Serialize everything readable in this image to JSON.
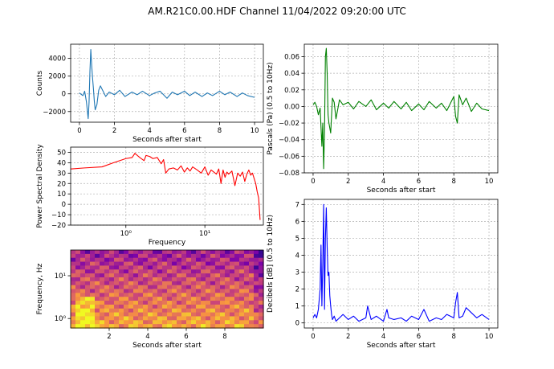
{
  "figure": {
    "title": "AM.R21C0.00.HDF Channel 11/04/2022 09:20:00 UTC"
  },
  "colors": {
    "counts": "#1f77b4",
    "psd": "#ff0000",
    "pascals": "#008000",
    "decibels": "#0000ff",
    "grid": "#b0b0b0"
  },
  "chart_data": [
    {
      "id": "counts",
      "type": "line",
      "title": "",
      "xlabel": "Seconds after start",
      "ylabel": "Counts",
      "xlim": [
        -0.5,
        10.5
      ],
      "ylim": [
        -3200,
        5600
      ],
      "xticks": [
        0,
        2,
        4,
        6,
        8,
        10
      ],
      "yticks": [
        -2000,
        0,
        2000,
        4000
      ],
      "grid": true,
      "x": [
        0.0,
        0.2,
        0.3,
        0.4,
        0.5,
        0.55,
        0.6,
        0.65,
        0.7,
        0.75,
        0.8,
        0.85,
        0.9,
        1.0,
        1.1,
        1.2,
        1.3,
        1.5,
        1.7,
        2.0,
        2.3,
        2.6,
        3.0,
        3.3,
        3.6,
        4.0,
        4.3,
        4.6,
        5.0,
        5.3,
        5.6,
        6.0,
        6.3,
        6.6,
        7.0,
        7.3,
        7.6,
        8.0,
        8.3,
        8.6,
        9.0,
        9.3,
        9.6,
        10.0
      ],
      "values": [
        100,
        -200,
        300,
        -900,
        -2800,
        -1000,
        2500,
        5000,
        3200,
        1800,
        600,
        -800,
        -1800,
        -1200,
        400,
        900,
        500,
        -300,
        200,
        -100,
        400,
        -300,
        200,
        -100,
        300,
        -200,
        100,
        300,
        -500,
        200,
        -100,
        300,
        -200,
        200,
        -300,
        100,
        -200,
        300,
        -100,
        200,
        -300,
        100,
        -200,
        -400
      ]
    },
    {
      "id": "psd",
      "type": "line",
      "title": "",
      "xlabel": "Frequency",
      "ylabel": "Power Spectral Density",
      "xscale": "log",
      "xlim": [
        0.2,
        55
      ],
      "ylim": [
        -20,
        55
      ],
      "xticks": [
        1,
        10
      ],
      "xticklabels": [
        "10⁰",
        "10¹"
      ],
      "yticks": [
        -20,
        -10,
        0,
        10,
        20,
        30,
        40,
        50
      ],
      "grid": true,
      "x": [
        0.2,
        0.3,
        0.5,
        0.7,
        1.0,
        1.2,
        1.3,
        1.5,
        1.7,
        1.8,
        2.0,
        2.2,
        2.5,
        2.8,
        3.0,
        3.2,
        3.5,
        4,
        4.5,
        5,
        5.5,
        6,
        6.5,
        7,
        8,
        9,
        10,
        11,
        12,
        13,
        14,
        15,
        16,
        17,
        18,
        19,
        20,
        22,
        24,
        26,
        28,
        30,
        32,
        34,
        36,
        38,
        40,
        42,
        44,
        46,
        48,
        50
      ],
      "values": [
        34,
        35,
        36,
        40,
        44,
        45,
        49,
        45,
        42,
        47,
        46,
        44,
        45,
        39,
        43,
        30,
        34,
        35,
        33,
        37,
        31,
        35,
        32,
        36,
        33,
        30,
        36,
        28,
        33,
        31,
        29,
        34,
        20,
        33,
        26,
        31,
        29,
        32,
        18,
        30,
        27,
        31,
        22,
        29,
        33,
        28,
        30,
        25,
        20,
        12,
        6,
        -15
      ]
    },
    {
      "id": "spectrogram",
      "type": "heatmap",
      "title": "",
      "xlabel": "Seconds after start",
      "ylabel": "Frequency, Hz",
      "yscale": "log",
      "xlim": [
        0,
        10
      ],
      "ylim": [
        0.6,
        40
      ],
      "xticks": [
        2,
        4,
        6,
        8
      ],
      "yticks": [
        1,
        10
      ],
      "yticklabels": [
        "10⁰",
        "10¹"
      ],
      "colormap": "plasma"
    },
    {
      "id": "pascals",
      "type": "line",
      "title": "",
      "xlabel": "Seconds after start",
      "ylabel": "Pascals (Pa) (0.5 to 10Hz)",
      "xlim": [
        -0.5,
        10.5
      ],
      "ylim": [
        -0.08,
        0.075
      ],
      "xticks": [
        0,
        2,
        4,
        6,
        8,
        10
      ],
      "yticks": [
        -0.08,
        -0.06,
        -0.04,
        -0.02,
        0.0,
        0.02,
        0.04,
        0.06
      ],
      "yticklabels": [
        "−0.08",
        "−0.06",
        "−0.04",
        "−0.02",
        "0.00",
        "0.02",
        "0.04",
        "0.06"
      ],
      "grid": true,
      "x": [
        0.0,
        0.1,
        0.2,
        0.3,
        0.4,
        0.5,
        0.55,
        0.6,
        0.65,
        0.7,
        0.75,
        0.8,
        0.85,
        0.9,
        1.0,
        1.1,
        1.2,
        1.3,
        1.5,
        1.7,
        2.0,
        2.3,
        2.6,
        3.0,
        3.3,
        3.6,
        4.0,
        4.3,
        4.6,
        5.0,
        5.3,
        5.6,
        6.0,
        6.3,
        6.6,
        7.0,
        7.3,
        7.6,
        8.0,
        8.1,
        8.2,
        8.3,
        8.5,
        8.7,
        9.0,
        9.3,
        9.6,
        10.0
      ],
      "values": [
        0.002,
        0.005,
        0.0,
        -0.01,
        -0.002,
        -0.048,
        -0.02,
        -0.075,
        -0.03,
        0.06,
        0.07,
        0.04,
        -0.01,
        -0.02,
        -0.032,
        0.01,
        0.005,
        -0.015,
        0.008,
        0.002,
        0.005,
        -0.003,
        0.006,
        0.0,
        0.008,
        -0.004,
        0.004,
        -0.002,
        0.006,
        -0.003,
        0.005,
        -0.005,
        0.003,
        -0.004,
        0.006,
        -0.002,
        0.004,
        -0.005,
        0.012,
        -0.012,
        -0.02,
        0.014,
        0.002,
        0.01,
        -0.006,
        0.004,
        -0.003,
        -0.005
      ]
    },
    {
      "id": "decibels",
      "type": "line",
      "title": "",
      "xlabel": "Seconds after start",
      "ylabel": "Decibels [dB] (0.5 to 10Hz)",
      "xlim": [
        -0.5,
        10.5
      ],
      "ylim": [
        -0.3,
        7.3
      ],
      "xticks": [
        0,
        2,
        4,
        6,
        8,
        10
      ],
      "yticks": [
        0,
        1,
        2,
        3,
        4,
        5,
        6,
        7
      ],
      "grid": true,
      "x": [
        0.0,
        0.1,
        0.2,
        0.3,
        0.4,
        0.45,
        0.5,
        0.55,
        0.6,
        0.65,
        0.7,
        0.75,
        0.8,
        0.85,
        0.9,
        0.95,
        1.0,
        1.05,
        1.1,
        1.2,
        1.3,
        1.5,
        1.7,
        2.0,
        2.3,
        2.6,
        3.0,
        3.1,
        3.3,
        3.6,
        4.0,
        4.2,
        4.3,
        4.6,
        5.0,
        5.3,
        5.6,
        6.0,
        6.3,
        6.6,
        7.0,
        7.3,
        7.6,
        8.0,
        8.1,
        8.2,
        8.3,
        8.5,
        8.7,
        9.0,
        9.3,
        9.6,
        10.0
      ],
      "values": [
        0.3,
        0.5,
        0.3,
        0.8,
        2.0,
        4.6,
        1.0,
        3.5,
        7.0,
        0.8,
        5.0,
        6.8,
        4.5,
        2.8,
        3.0,
        1.6,
        1.0,
        0.5,
        0.2,
        0.4,
        0.1,
        0.3,
        0.5,
        0.2,
        0.4,
        0.1,
        0.3,
        1.0,
        0.2,
        0.4,
        0.1,
        0.8,
        0.3,
        0.2,
        0.3,
        0.1,
        0.4,
        0.2,
        0.8,
        0.1,
        0.3,
        0.2,
        0.5,
        0.3,
        1.2,
        1.8,
        0.3,
        0.4,
        0.9,
        0.6,
        0.3,
        0.5,
        0.2
      ]
    }
  ]
}
